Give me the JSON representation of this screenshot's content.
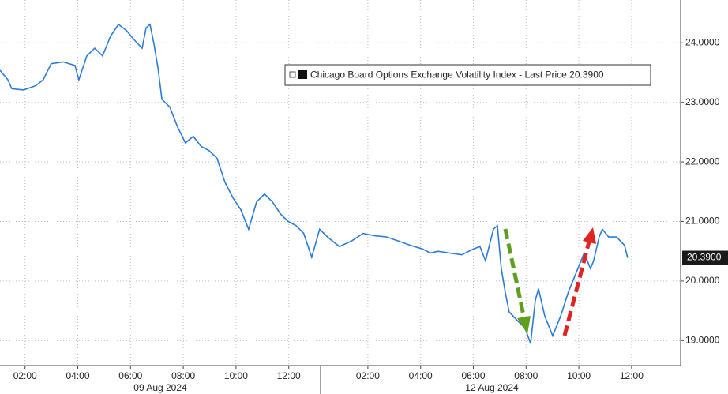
{
  "chart_data": {
    "type": "line",
    "series": [
      {
        "name": "Chicago Board Options Exchange Volatility Index - Last Price 20.3900",
        "color": "#2b7bd6",
        "x": [
          1.05,
          1.35,
          1.5,
          1.95,
          2.4,
          2.69,
          2.99,
          3.44,
          3.89,
          4.04,
          4.34,
          4.64,
          4.94,
          5.24,
          5.54,
          5.84,
          6.14,
          6.44,
          6.59,
          6.74,
          6.89,
          7.04,
          7.19,
          7.49,
          7.78,
          8.08,
          8.38,
          8.68,
          8.98,
          9.28,
          9.58,
          9.88,
          10.18,
          10.48,
          10.78,
          11.08,
          11.38,
          11.68,
          11.98,
          12.28,
          12.57,
          12.87,
          13.17,
          13.47,
          13.92,
          14.37,
          14.82,
          15.27,
          15.72,
          16.17,
          16.62,
          17.07,
          17.37,
          17.66,
          18.11,
          18.56,
          19.01,
          19.25,
          19.46,
          19.76,
          19.91,
          20.06,
          20.21,
          20.36,
          20.66,
          20.96,
          21.17,
          21.35,
          21.47,
          21.71,
          22.01,
          22.31,
          22.6,
          22.9,
          23.2,
          23.44,
          23.56,
          23.77,
          23.89,
          24.13,
          24.43,
          24.73,
          24.85
        ],
        "values": [
          23.54,
          23.38,
          23.23,
          23.21,
          23.28,
          23.38,
          23.65,
          23.68,
          23.62,
          23.38,
          23.78,
          23.91,
          23.78,
          24.11,
          24.31,
          24.21,
          24.05,
          23.91,
          24.25,
          24.31,
          23.98,
          23.58,
          23.05,
          22.92,
          22.59,
          22.32,
          22.43,
          22.26,
          22.19,
          22.06,
          21.66,
          21.4,
          21.2,
          20.87,
          21.33,
          21.46,
          21.33,
          21.13,
          21.0,
          20.93,
          20.8,
          20.4,
          20.87,
          20.74,
          20.58,
          20.67,
          20.8,
          20.76,
          20.74,
          20.67,
          20.6,
          20.54,
          20.47,
          20.5,
          20.47,
          20.44,
          20.54,
          20.58,
          20.34,
          20.87,
          20.93,
          20.21,
          19.81,
          19.48,
          19.34,
          19.21,
          18.95,
          19.68,
          19.87,
          19.41,
          19.08,
          19.41,
          19.81,
          20.14,
          20.47,
          20.21,
          20.34,
          20.74,
          20.87,
          20.74,
          20.74,
          20.6,
          20.39
        ]
      }
    ],
    "last_price": {
      "value": 20.39,
      "label": "20.3900"
    },
    "xlim": [
      1.05,
      26.86
    ],
    "xticks": [
      {
        "value": 2,
        "label": "02:00"
      },
      {
        "value": 4,
        "label": "04:00"
      },
      {
        "value": 6,
        "label": "06:00"
      },
      {
        "value": 8,
        "label": "08:00"
      },
      {
        "value": 10,
        "label": "10:00"
      },
      {
        "value": 12,
        "label": "12:00"
      },
      {
        "value": 15,
        "label": "02:00"
      },
      {
        "value": 17,
        "label": "04:00"
      },
      {
        "value": 19,
        "label": "06:00"
      },
      {
        "value": 21,
        "label": "08:00"
      },
      {
        "value": 23,
        "label": "10:00"
      },
      {
        "value": 25,
        "label": "12:00"
      }
    ],
    "dates": [
      "09 Aug 2024",
      "12 Aug 2024"
    ],
    "ylim": [
      18.58,
      24.72
    ],
    "yticks": [
      {
        "value": 19,
        "label": "19.0000"
      },
      {
        "value": 20,
        "label": "20.0000"
      },
      {
        "value": 21,
        "label": "21.0000"
      },
      {
        "value": 22,
        "label": "22.0000"
      },
      {
        "value": 23,
        "label": "23.0000"
      },
      {
        "value": 24,
        "label": "24.0000"
      }
    ],
    "grid": true
  }
}
